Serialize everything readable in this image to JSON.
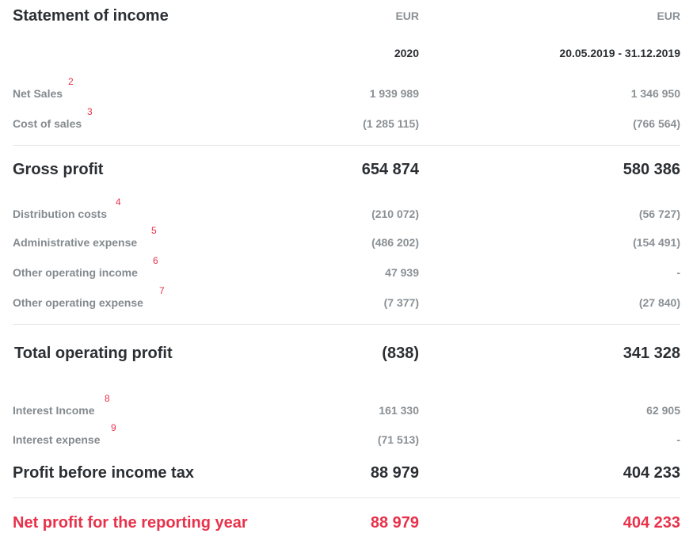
{
  "title": "Statement of income",
  "columns": [
    {
      "currency": "EUR",
      "period": "2020"
    },
    {
      "currency": "EUR",
      "period": "20.05.2019 - 31.12.2019"
    }
  ],
  "rows": [
    {
      "label": "Net Sales",
      "note": "2",
      "v2020": "1 939 989",
      "v2019": "1 346 950"
    },
    {
      "label": "Cost of sales",
      "note": "3",
      "v2020": "(1 285 115)",
      "v2019": "(766 564)"
    },
    {
      "label": "Gross profit",
      "v2020": "654 874",
      "v2019": "580 386"
    },
    {
      "label": "Distribution costs",
      "note": "4",
      "v2020": "(210 072)",
      "v2019": "(56 727)"
    },
    {
      "label": "Administrative expense",
      "note": "5",
      "v2020": "(486 202)",
      "v2019": "(154 491)"
    },
    {
      "label": "Other operating income",
      "note": "6",
      "v2020": "47 939",
      "v2019": "-"
    },
    {
      "label": "Other operating expense",
      "note": "7",
      "v2020": "(7 377)",
      "v2019": "(27 840)"
    },
    {
      "label": "Total operating profit",
      "v2020": "(838)",
      "v2019": "341 328"
    },
    {
      "label": "Interest Income",
      "note": "8",
      "v2020": "161 330",
      "v2019": "62 905"
    },
    {
      "label": "Interest expense",
      "note": "9",
      "v2020": "(71 513)",
      "v2019": "-"
    },
    {
      "label": "Profit before income tax",
      "v2020": "88 979",
      "v2019": "404 233"
    },
    {
      "label": "Net profit for the reporting year",
      "v2020": "88 979",
      "v2019": "404 233"
    }
  ],
  "colors": {
    "text": "#2b2f33",
    "muted": "#8a9095",
    "accent": "#e8324b",
    "rule": "#e5e7e9"
  }
}
